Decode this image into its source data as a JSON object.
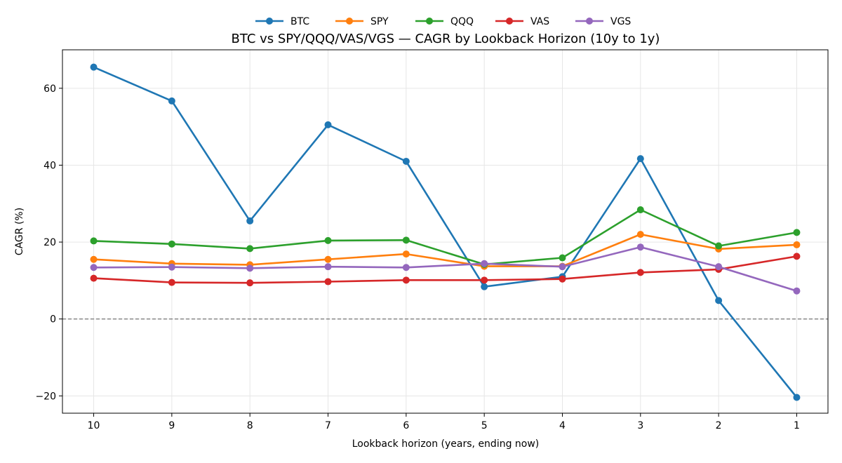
{
  "chart_data": {
    "type": "line",
    "title": "BTC vs SPY/QQQ/VAS/VGS — CAGR by Lookback Horizon (10y to 1y)",
    "xlabel": "Lookback horizon (years, ending now)",
    "ylabel": "CAGR (%)",
    "x": [
      10,
      9,
      8,
      7,
      6,
      5,
      4,
      3,
      2,
      1
    ],
    "xticks": [
      "10",
      "9",
      "8",
      "7",
      "6",
      "5",
      "4",
      "3",
      "2",
      "1"
    ],
    "xlim": [
      10.4,
      0.6
    ],
    "ylim": [
      -24.5,
      70
    ],
    "yticks": [
      -20,
      0,
      20,
      40,
      60
    ],
    "ytick_labels": [
      "−20",
      "0",
      "20",
      "40",
      "60"
    ],
    "grid": true,
    "reference_line": {
      "y": 0,
      "style": "dashed",
      "color": "#808080"
    },
    "legend_position": "top-center",
    "series": [
      {
        "name": "BTC",
        "color": "#1f77b4",
        "values": [
          65.5,
          56.7,
          25.5,
          50.5,
          41.0,
          8.4,
          11.0,
          41.7,
          4.8,
          -20.4
        ]
      },
      {
        "name": "SPY",
        "color": "#ff7f0e",
        "values": [
          15.5,
          14.4,
          14.1,
          15.5,
          16.9,
          13.7,
          13.7,
          22.0,
          18.2,
          19.3
        ]
      },
      {
        "name": "QQQ",
        "color": "#2ca02c",
        "values": [
          20.3,
          19.5,
          18.3,
          20.4,
          20.5,
          14.2,
          15.9,
          28.4,
          19.0,
          22.5
        ]
      },
      {
        "name": "VAS",
        "color": "#d62728",
        "values": [
          10.6,
          9.5,
          9.4,
          9.7,
          10.1,
          10.1,
          10.4,
          12.1,
          12.9,
          16.3
        ]
      },
      {
        "name": "VGS",
        "color": "#9467bd",
        "values": [
          13.4,
          13.5,
          13.2,
          13.6,
          13.4,
          14.4,
          13.6,
          18.7,
          13.6,
          7.3
        ]
      }
    ]
  }
}
